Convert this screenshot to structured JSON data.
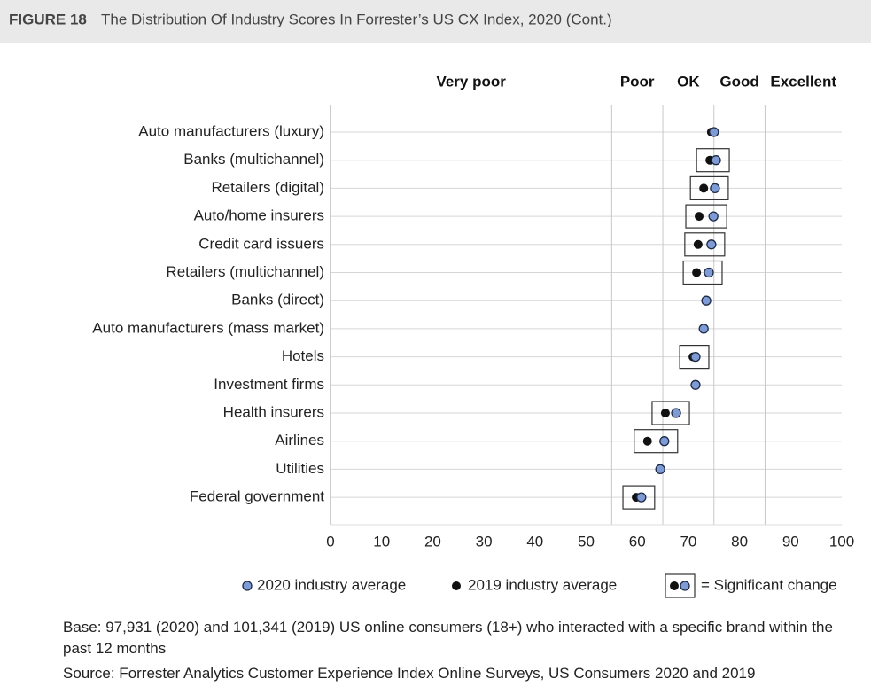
{
  "chart_data": {
    "type": "dot",
    "figure_label": "FIGURE 18",
    "title": "The Distribution Of Industry Scores In Forrester’s US CX Index, 2020 (Cont.)",
    "categories": [
      "Auto manufacturers (luxury)",
      "Banks (multichannel)",
      "Retailers (digital)",
      "Auto/home insurers",
      "Credit card issuers",
      "Retailers (multichannel)",
      "Banks (direct)",
      "Auto manufacturers (mass market)",
      "Hotels",
      "Investment firms",
      "Health insurers",
      "Airlines",
      "Utilities",
      "Federal government"
    ],
    "series": [
      {
        "name": "2020 industry average",
        "color": "#7f9bd6",
        "values": [
          75,
          75.4,
          75.2,
          74.9,
          74.5,
          74,
          73.5,
          73,
          71.4,
          71.4,
          67.6,
          65.3,
          64.5,
          60.8
        ]
      },
      {
        "name": "2019 industry average",
        "color": "#111111",
        "values": [
          74.5,
          74.2,
          73,
          72.1,
          71.9,
          71.6,
          73.5,
          73,
          70.9,
          71.4,
          65.5,
          62,
          64.5,
          59.8
        ]
      }
    ],
    "significant": [
      false,
      true,
      true,
      true,
      true,
      true,
      false,
      false,
      true,
      false,
      true,
      true,
      false,
      true
    ],
    "significant_label": "= Significant change",
    "bands": [
      "Very poor",
      "Poor",
      "OK",
      "Good",
      "Excellent"
    ],
    "band_edges": [
      55,
      65,
      75,
      85
    ],
    "xlim": [
      0,
      100
    ],
    "xticks": [
      0,
      10,
      20,
      30,
      40,
      50,
      60,
      70,
      80,
      90,
      100
    ],
    "grid": true,
    "notes": [
      "Base: 97,931 (2020) and 101,341 (2019) US online consumers (18+) who interacted with a specific brand within the past 12 months",
      "Source: Forrester Analytics Customer Experience Index Online Surveys, US Consumers 2020 and 2019"
    ]
  }
}
